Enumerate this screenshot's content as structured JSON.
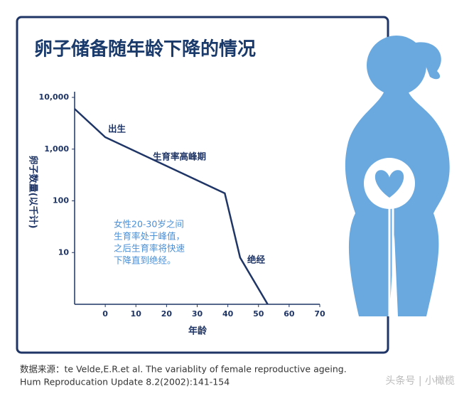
{
  "chart_data": {
    "type": "line",
    "title": "卵子储备随年龄下降的情况",
    "y_label": "卵子数量(以千计)",
    "x_label": "年龄",
    "log_y": true,
    "grid": false,
    "xlim": [
      -10,
      70
    ],
    "xticks": [
      0,
      10,
      20,
      30,
      40,
      50,
      60,
      70
    ],
    "ylim": [
      1,
      10000
    ],
    "yticks": [
      10,
      100,
      {
        "value": 1000,
        "label": "1,000"
      },
      {
        "value": 10000,
        "label": "10,000"
      }
    ],
    "x": [
      -10,
      0,
      39,
      44,
      53
    ],
    "values": [
      6000,
      1700,
      140,
      8,
      1
    ],
    "color": "#1f3566",
    "annotations": [
      "出生",
      "生育率高峰期",
      "绝经"
    ],
    "note": [
      "女性20-30岁之间",
      "生育率处于峰值，",
      "之后生育率将快速",
      "下降直到绝经。"
    ]
  },
  "source": [
    "数据来源：te Velde,E.R.et al. The variablity of female reproductive ageing.",
    "Hum Reproducation Update 8.2(2002):141-154"
  ],
  "watermark": "头条号 | 小橄榄"
}
